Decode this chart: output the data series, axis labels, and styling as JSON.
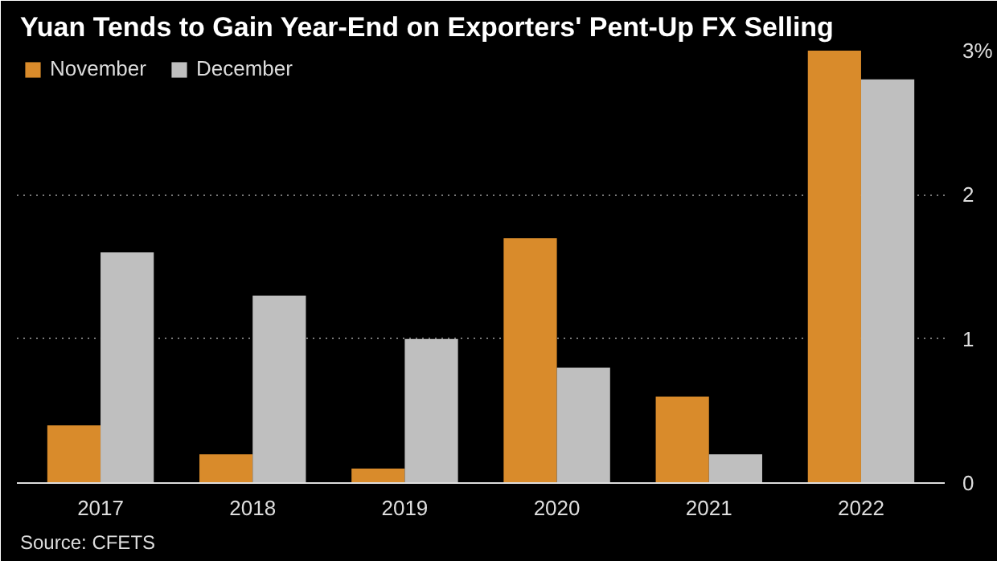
{
  "chart_data": {
    "type": "bar",
    "title": "Yuan Tends to Gain Year-End on Exporters' Pent-Up FX Selling",
    "categories": [
      "2017",
      "2018",
      "2019",
      "2020",
      "2021",
      "2022"
    ],
    "series": [
      {
        "name": "November",
        "color": "#d98b2b",
        "values": [
          0.4,
          0.2,
          0.1,
          1.7,
          0.6,
          3.0
        ]
      },
      {
        "name": "December",
        "color": "#bfbfbf",
        "values": [
          1.6,
          1.3,
          1.0,
          0.8,
          0.2,
          2.8
        ]
      }
    ],
    "ylim": [
      0,
      3
    ],
    "yticks": [
      0,
      1,
      2,
      {
        "value": 3,
        "label": "3%"
      }
    ],
    "grid": "y",
    "legend": "top left",
    "line_style": "dotted",
    "annotations": [
      "Source: CFETS"
    ]
  }
}
